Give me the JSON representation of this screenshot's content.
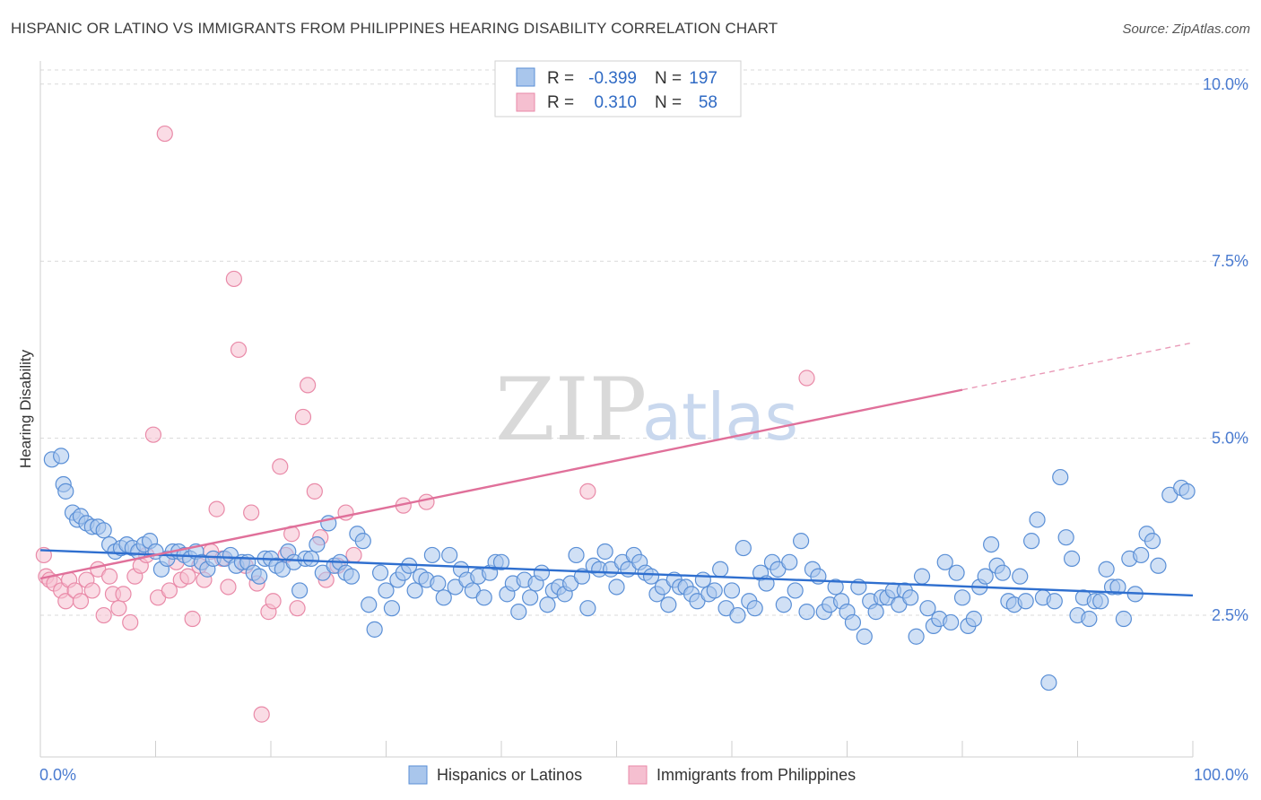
{
  "title": "HISPANIC OR LATINO VS IMMIGRANTS FROM PHILIPPINES HEARING DISABILITY CORRELATION CHART",
  "source": "Source: ZipAtlas.com",
  "watermark": {
    "zip": "ZIP",
    "atlas": "atlas"
  },
  "colors": {
    "blue_fill": "#a9c6ec",
    "blue_stroke": "#5a8fd6",
    "blue_line": "#2f6fcf",
    "pink_fill": "#f5bfd0",
    "pink_stroke": "#e98aa8",
    "pink_line": "#e0709a",
    "grid": "#d9d9d9",
    "label": "#4a7bd0"
  },
  "legend": {
    "row1": {
      "r_label": "R =",
      "r_value": "-0.399",
      "n_label": "N =",
      "n_value": "197"
    },
    "row2": {
      "r_label": "R =",
      "r_value": "0.310",
      "n_label": "N =",
      "n_value": "58"
    }
  },
  "chart_data": {
    "type": "scatter",
    "title": "HISPANIC OR LATINO VS IMMIGRANTS FROM PHILIPPINES HEARING DISABILITY CORRELATION CHART",
    "xlabel": "",
    "ylabel": "Hearing Disability",
    "xlim": [
      0,
      100
    ],
    "ylim": [
      0.5,
      10.2
    ],
    "x_tick_labels": [
      "0.0%",
      "100.0%"
    ],
    "y_ticks": [
      2.5,
      5.0,
      7.5,
      10.0
    ],
    "y_tick_labels": [
      "2.5%",
      "5.0%",
      "7.5%",
      "10.0%"
    ],
    "grid": true,
    "legend_position": "top-center",
    "series": [
      {
        "name": "Hispanics or Latinos",
        "color": "#a9c6ec",
        "trend": {
          "x": [
            0,
            100
          ],
          "y": [
            3.42,
            2.78
          ],
          "dashed_from": null
        },
        "points": [
          [
            1,
            4.7
          ],
          [
            1.8,
            4.75
          ],
          [
            2,
            4.35
          ],
          [
            2.2,
            4.25
          ],
          [
            2.8,
            3.95
          ],
          [
            3.2,
            3.85
          ],
          [
            3.5,
            3.9
          ],
          [
            4,
            3.8
          ],
          [
            4.5,
            3.75
          ],
          [
            5,
            3.75
          ],
          [
            5.5,
            3.7
          ],
          [
            6,
            3.5
          ],
          [
            6.5,
            3.4
          ],
          [
            7,
            3.45
          ],
          [
            7.5,
            3.5
          ],
          [
            8,
            3.45
          ],
          [
            8.5,
            3.4
          ],
          [
            9,
            3.5
          ],
          [
            9.5,
            3.55
          ],
          [
            10,
            3.4
          ],
          [
            10.5,
            3.15
          ],
          [
            11,
            3.3
          ],
          [
            11.5,
            3.4
          ],
          [
            12,
            3.4
          ],
          [
            12.5,
            3.35
          ],
          [
            13,
            3.3
          ],
          [
            13.5,
            3.4
          ],
          [
            14,
            3.25
          ],
          [
            14.5,
            3.15
          ],
          [
            15,
            3.3
          ],
          [
            16,
            3.3
          ],
          [
            16.5,
            3.35
          ],
          [
            17,
            3.2
          ],
          [
            17.5,
            3.25
          ],
          [
            18,
            3.25
          ],
          [
            18.5,
            3.1
          ],
          [
            19,
            3.05
          ],
          [
            19.5,
            3.3
          ],
          [
            20,
            3.3
          ],
          [
            20.5,
            3.2
          ],
          [
            21,
            3.15
          ],
          [
            21.5,
            3.4
          ],
          [
            22,
            3.25
          ],
          [
            22.5,
            2.85
          ],
          [
            23,
            3.3
          ],
          [
            23.5,
            3.3
          ],
          [
            24,
            3.5
          ],
          [
            24.5,
            3.1
          ],
          [
            25,
            3.8
          ],
          [
            25.5,
            3.2
          ],
          [
            26,
            3.25
          ],
          [
            26.5,
            3.1
          ],
          [
            27,
            3.05
          ],
          [
            27.5,
            3.65
          ],
          [
            28,
            3.55
          ],
          [
            28.5,
            2.65
          ],
          [
            29,
            2.3
          ],
          [
            29.5,
            3.1
          ],
          [
            30,
            2.85
          ],
          [
            30.5,
            2.6
          ],
          [
            31,
            3.0
          ],
          [
            31.5,
            3.1
          ],
          [
            32,
            3.2
          ],
          [
            32.5,
            2.85
          ],
          [
            33,
            3.05
          ],
          [
            33.5,
            3.0
          ],
          [
            34,
            3.35
          ],
          [
            34.5,
            2.95
          ],
          [
            35,
            2.75
          ],
          [
            35.5,
            3.35
          ],
          [
            36,
            2.9
          ],
          [
            36.5,
            3.15
          ],
          [
            37,
            3.0
          ],
          [
            37.5,
            2.85
          ],
          [
            38,
            3.05
          ],
          [
            38.5,
            2.75
          ],
          [
            39,
            3.1
          ],
          [
            39.5,
            3.25
          ],
          [
            40,
            3.25
          ],
          [
            40.5,
            2.8
          ],
          [
            41,
            2.95
          ],
          [
            41.5,
            2.55
          ],
          [
            42,
            3.0
          ],
          [
            42.5,
            2.75
          ],
          [
            43,
            2.95
          ],
          [
            43.5,
            3.1
          ],
          [
            44,
            2.65
          ],
          [
            44.5,
            2.85
          ],
          [
            45,
            2.9
          ],
          [
            45.5,
            2.8
          ],
          [
            46,
            2.95
          ],
          [
            46.5,
            3.35
          ],
          [
            47,
            3.05
          ],
          [
            47.5,
            2.6
          ],
          [
            48,
            3.2
          ],
          [
            48.5,
            3.15
          ],
          [
            49,
            3.4
          ],
          [
            49.5,
            3.15
          ],
          [
            50,
            2.9
          ],
          [
            50.5,
            3.25
          ],
          [
            51,
            3.15
          ],
          [
            51.5,
            3.35
          ],
          [
            52,
            3.25
          ],
          [
            52.5,
            3.1
          ],
          [
            53,
            3.05
          ],
          [
            53.5,
            2.8
          ],
          [
            54,
            2.9
          ],
          [
            54.5,
            2.65
          ],
          [
            55,
            3.0
          ],
          [
            55.5,
            2.9
          ],
          [
            56,
            2.9
          ],
          [
            56.5,
            2.8
          ],
          [
            57,
            2.7
          ],
          [
            57.5,
            3.0
          ],
          [
            58,
            2.8
          ],
          [
            58.5,
            2.85
          ],
          [
            59,
            3.15
          ],
          [
            59.5,
            2.6
          ],
          [
            60,
            2.85
          ],
          [
            60.5,
            2.5
          ],
          [
            61,
            3.45
          ],
          [
            61.5,
            2.7
          ],
          [
            62,
            2.6
          ],
          [
            62.5,
            3.1
          ],
          [
            63,
            2.95
          ],
          [
            63.5,
            3.25
          ],
          [
            64,
            3.15
          ],
          [
            64.5,
            2.65
          ],
          [
            65,
            3.25
          ],
          [
            65.5,
            2.85
          ],
          [
            66,
            3.55
          ],
          [
            66.5,
            2.55
          ],
          [
            67,
            3.15
          ],
          [
            67.5,
            3.05
          ],
          [
            68,
            2.55
          ],
          [
            68.5,
            2.65
          ],
          [
            69,
            2.9
          ],
          [
            69.5,
            2.7
          ],
          [
            70,
            2.55
          ],
          [
            70.5,
            2.4
          ],
          [
            71,
            2.9
          ],
          [
            71.5,
            2.2
          ],
          [
            72,
            2.7
          ],
          [
            72.5,
            2.55
          ],
          [
            73,
            2.75
          ],
          [
            73.5,
            2.75
          ],
          [
            74,
            2.85
          ],
          [
            74.5,
            2.65
          ],
          [
            75,
            2.85
          ],
          [
            75.5,
            2.75
          ],
          [
            76,
            2.2
          ],
          [
            76.5,
            3.05
          ],
          [
            77,
            2.6
          ],
          [
            77.5,
            2.35
          ],
          [
            78,
            2.45
          ],
          [
            78.5,
            3.25
          ],
          [
            79,
            2.4
          ],
          [
            79.5,
            3.1
          ],
          [
            80,
            2.75
          ],
          [
            80.5,
            2.35
          ],
          [
            81,
            2.45
          ],
          [
            81.5,
            2.9
          ],
          [
            82,
            3.05
          ],
          [
            82.5,
            3.5
          ],
          [
            83,
            3.2
          ],
          [
            83.5,
            3.1
          ],
          [
            84,
            2.7
          ],
          [
            84.5,
            2.65
          ],
          [
            85,
            3.05
          ],
          [
            85.5,
            2.7
          ],
          [
            86,
            3.55
          ],
          [
            86.5,
            3.85
          ],
          [
            87,
            2.75
          ],
          [
            87.5,
            1.55
          ],
          [
            88,
            2.7
          ],
          [
            88.5,
            4.45
          ],
          [
            89,
            3.6
          ],
          [
            89.5,
            3.3
          ],
          [
            90,
            2.5
          ],
          [
            90.5,
            2.75
          ],
          [
            91,
            2.45
          ],
          [
            91.5,
            2.7
          ],
          [
            92,
            2.7
          ],
          [
            92.5,
            3.15
          ],
          [
            93,
            2.9
          ],
          [
            93.5,
            2.9
          ],
          [
            94,
            2.45
          ],
          [
            94.5,
            3.3
          ],
          [
            95,
            2.8
          ],
          [
            95.5,
            3.35
          ],
          [
            96,
            3.65
          ],
          [
            96.5,
            3.55
          ],
          [
            97,
            3.2
          ],
          [
            98,
            4.2
          ],
          [
            99,
            4.3
          ],
          [
            99.5,
            4.25
          ]
        ]
      },
      {
        "name": "Immigrants from Philippines",
        "color": "#f5bfd0",
        "trend": {
          "x": [
            0,
            100
          ],
          "y": [
            3.02,
            6.35
          ],
          "dashed_from": 80
        },
        "points": [
          [
            0.3,
            3.35
          ],
          [
            0.5,
            3.05
          ],
          [
            0.8,
            3.0
          ],
          [
            1.2,
            2.95
          ],
          [
            1.8,
            2.85
          ],
          [
            2.2,
            2.7
          ],
          [
            2.5,
            3.0
          ],
          [
            3,
            2.85
          ],
          [
            3.5,
            2.7
          ],
          [
            4,
            3.0
          ],
          [
            4.5,
            2.85
          ],
          [
            5,
            3.15
          ],
          [
            5.5,
            2.5
          ],
          [
            6,
            3.05
          ],
          [
            6.3,
            2.8
          ],
          [
            6.8,
            2.6
          ],
          [
            7.2,
            2.8
          ],
          [
            7.8,
            2.4
          ],
          [
            8.2,
            3.05
          ],
          [
            8.7,
            3.2
          ],
          [
            9.2,
            3.35
          ],
          [
            9.8,
            5.05
          ],
          [
            10.2,
            2.75
          ],
          [
            10.8,
            9.3
          ],
          [
            11.2,
            2.85
          ],
          [
            11.8,
            3.25
          ],
          [
            12.2,
            3.0
          ],
          [
            12.8,
            3.05
          ],
          [
            13.2,
            2.45
          ],
          [
            13.8,
            3.2
          ],
          [
            14.2,
            3.0
          ],
          [
            14.8,
            3.4
          ],
          [
            15.3,
            4.0
          ],
          [
            15.8,
            3.3
          ],
          [
            16.3,
            2.9
          ],
          [
            16.8,
            7.25
          ],
          [
            17.2,
            6.25
          ],
          [
            17.8,
            3.2
          ],
          [
            18.3,
            3.95
          ],
          [
            18.8,
            2.95
          ],
          [
            19.2,
            1.1
          ],
          [
            19.8,
            2.55
          ],
          [
            20.2,
            2.7
          ],
          [
            20.8,
            4.6
          ],
          [
            21.3,
            3.35
          ],
          [
            21.8,
            3.65
          ],
          [
            22.3,
            2.6
          ],
          [
            22.8,
            5.3
          ],
          [
            23.2,
            5.75
          ],
          [
            23.8,
            4.25
          ],
          [
            24.3,
            3.6
          ],
          [
            24.8,
            3.0
          ],
          [
            25.8,
            3.2
          ],
          [
            26.5,
            3.95
          ],
          [
            27.2,
            3.35
          ],
          [
            31.5,
            4.05
          ],
          [
            33.5,
            4.1
          ],
          [
            47.5,
            4.25
          ],
          [
            66.5,
            5.85
          ]
        ]
      }
    ]
  },
  "bottom_legend": {
    "item1": "Hispanics or Latinos",
    "item2": "Immigrants from Philippines"
  }
}
